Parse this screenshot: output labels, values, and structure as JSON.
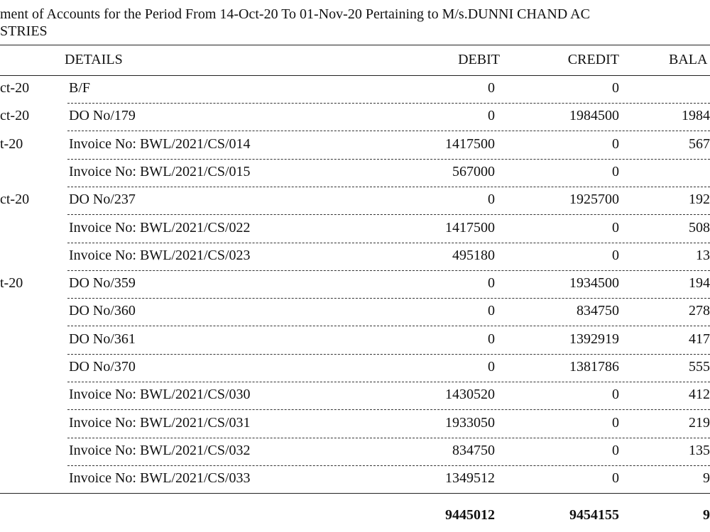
{
  "header": {
    "title_lines": [
      "ment of Accounts for the Period From 14-Oct-20 To 01-Nov-20 Pertaining to M/s.DUNNI CHAND AC",
      "STRIES"
    ]
  },
  "table": {
    "columns": [
      "DETAILS",
      "DEBIT",
      "CREDIT",
      "BALA"
    ],
    "rows": [
      [
        "ct-20",
        "B/F",
        0,
        0,
        null
      ],
      [
        "ct-20",
        "DO No/179",
        0,
        1984500,
        "1984"
      ],
      [
        "t-20",
        "Invoice No: BWL/2021/CS/014",
        1417500,
        0,
        "567"
      ],
      [
        null,
        "Invoice No: BWL/2021/CS/015",
        567000,
        0,
        null
      ],
      [
        "ct-20",
        "DO No/237",
        0,
        1925700,
        "192"
      ],
      [
        null,
        "Invoice No: BWL/2021/CS/022",
        1417500,
        0,
        "508"
      ],
      [
        null,
        "Invoice No: BWL/2021/CS/023",
        495180,
        0,
        "13"
      ],
      [
        "t-20",
        "DO No/359",
        0,
        1934500,
        "194"
      ],
      [
        null,
        "DO No/360",
        0,
        834750,
        "278"
      ],
      [
        null,
        "DO No/361",
        0,
        1392919,
        "417"
      ],
      [
        null,
        "DO No/370",
        0,
        1381786,
        "555"
      ],
      [
        null,
        "Invoice No: BWL/2021/CS/030",
        1430520,
        0,
        "412"
      ],
      [
        null,
        "Invoice No: BWL/2021/CS/031",
        1933050,
        0,
        "219"
      ],
      [
        null,
        "Invoice No: BWL/2021/CS/032",
        834750,
        0,
        "135"
      ],
      [
        null,
        "Invoice No: BWL/2021/CS/033",
        1349512,
        0,
        "9"
      ]
    ],
    "totals": [
      9445012,
      9454155,
      "9"
    ]
  }
}
